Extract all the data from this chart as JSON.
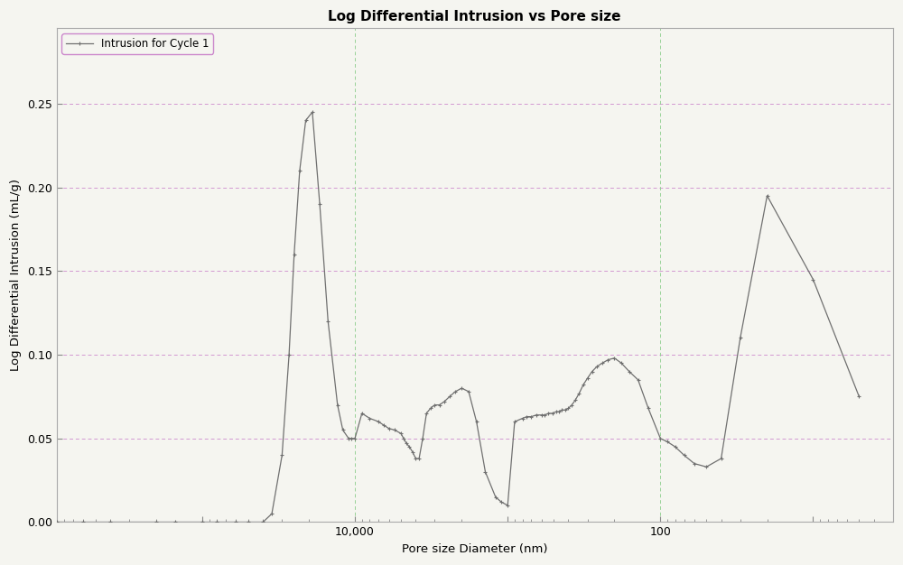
{
  "title": "Log Differential Intrusion vs Pore size",
  "xlabel": "Pore size Diameter (nm)",
  "ylabel": "Log Differential Intrusion (mL/g)",
  "legend_label": "Intrusion for Cycle 1",
  "line_color": "#707070",
  "marker": "+",
  "background_color": "#f5f5f0",
  "ylim": [
    0.0,
    0.295
  ],
  "yticks": [
    0.0,
    0.05,
    0.1,
    0.15,
    0.2,
    0.25
  ],
  "grid_color_h": "#cc88cc",
  "grid_color_v": "#88cc88",
  "vlines_major": [
    10000,
    100
  ],
  "xlim_left": 900000,
  "xlim_right": 3,
  "x_data": [
    900000,
    600000,
    400000,
    200000,
    150000,
    100000,
    80000,
    60000,
    50000,
    40000,
    35000,
    30000,
    27000,
    25000,
    23000,
    21000,
    19000,
    17000,
    15000,
    13000,
    12000,
    11000,
    10500,
    10000,
    9000,
    8000,
    7000,
    6500,
    6000,
    5500,
    5000,
    4800,
    4600,
    4400,
    4200,
    4000,
    3800,
    3600,
    3400,
    3200,
    3000,
    2800,
    2600,
    2400,
    2200,
    2000,
    1800,
    1600,
    1400,
    1200,
    1100,
    1000,
    900,
    800,
    750,
    700,
    650,
    600,
    570,
    540,
    510,
    480,
    460,
    440,
    420,
    400,
    380,
    360,
    340,
    320,
    300,
    280,
    260,
    240,
    220,
    200,
    180,
    160,
    140,
    120,
    100,
    90,
    80,
    70,
    60,
    50,
    40,
    30,
    20,
    10,
    5
  ],
  "y_data": [
    0.0,
    0.0,
    0.0,
    0.0,
    0.0,
    0.0,
    0.0,
    0.0,
    0.0,
    0.0,
    0.005,
    0.04,
    0.1,
    0.16,
    0.21,
    0.24,
    0.245,
    0.19,
    0.12,
    0.07,
    0.055,
    0.05,
    0.05,
    0.05,
    0.065,
    0.062,
    0.06,
    0.058,
    0.056,
    0.055,
    0.053,
    0.05,
    0.047,
    0.045,
    0.042,
    0.038,
    0.038,
    0.05,
    0.065,
    0.068,
    0.07,
    0.07,
    0.072,
    0.075,
    0.078,
    0.08,
    0.078,
    0.06,
    0.03,
    0.015,
    0.012,
    0.01,
    0.06,
    0.062,
    0.063,
    0.063,
    0.064,
    0.064,
    0.064,
    0.065,
    0.065,
    0.066,
    0.066,
    0.067,
    0.067,
    0.068,
    0.07,
    0.073,
    0.077,
    0.082,
    0.086,
    0.09,
    0.093,
    0.095,
    0.097,
    0.098,
    0.095,
    0.09,
    0.085,
    0.068,
    0.05,
    0.048,
    0.045,
    0.04,
    0.035,
    0.033,
    0.038,
    0.11,
    0.195,
    0.145,
    0.075
  ]
}
